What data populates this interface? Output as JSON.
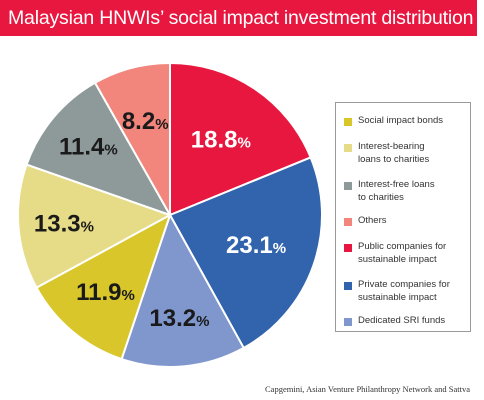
{
  "chart_data": {
    "type": "pie",
    "title": "Malaysian HNWIs’ social impact investment distribution",
    "slices": [
      {
        "label": "Public companies for sustainable impact",
        "value": 18.8,
        "value_text": "18.8",
        "unit": "%",
        "color": "#e8173f",
        "text_color": "#ffffff"
      },
      {
        "label": "Private companies for sustainable impact",
        "value": 23.1,
        "value_text": "23.1",
        "unit": "%",
        "color": "#3264ad",
        "text_color": "#ffffff"
      },
      {
        "label": "Dedicated SRI funds",
        "value": 13.2,
        "value_text": "13.2",
        "unit": "%",
        "color": "#7f97cd",
        "text_color": "#1a1a1a"
      },
      {
        "label": "Social impact bonds",
        "value": 11.9,
        "value_text": "11.9",
        "unit": "%",
        "color": "#d8c62b",
        "text_color": "#1a1a1a"
      },
      {
        "label": "Interest-bearing loans to charities",
        "value": 13.3,
        "value_text": "13.3",
        "unit": "%",
        "color": "#e6db86",
        "text_color": "#1a1a1a"
      },
      {
        "label": "Interest-free loans to charities",
        "value": 11.4,
        "value_text": "11.4",
        "unit": "%",
        "color": "#8e9a9a",
        "text_color": "#1a1a1a"
      },
      {
        "label": "Others",
        "value": 8.2,
        "value_text": "8.2",
        "unit": "%",
        "color": "#f2857c",
        "text_color": "#1a1a1a"
      }
    ],
    "legend_placement": "right",
    "legend": [
      {
        "lines": [
          "Social impact bonds"
        ],
        "color": "#d8c62b"
      },
      {
        "lines": [
          "Interest-bearing",
          "loans to charities"
        ],
        "color": "#e6db86"
      },
      {
        "lines": [
          "Interest-free loans",
          "to charities"
        ],
        "color": "#8e9a9a"
      },
      {
        "lines": [
          "Others"
        ],
        "color": "#f2857c"
      },
      {
        "lines": [
          "Public companies for",
          "sustainable impact"
        ],
        "color": "#e8173f"
      },
      {
        "lines": [
          "Private companies for",
          "sustainable impact"
        ],
        "color": "#3264ad"
      },
      {
        "lines": [
          "Dedicated SRI funds"
        ],
        "color": "#7f97cd"
      }
    ],
    "source": "Capgemini, Asian Venture Philanthropy Network and Sattva"
  }
}
